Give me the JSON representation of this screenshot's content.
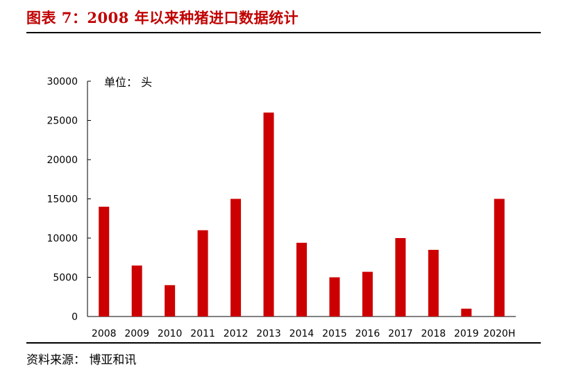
{
  "header": {
    "title": "图表 7：2008 年以来种猪进口数据统计"
  },
  "footer": {
    "source": "资料来源： 博亚和讯"
  },
  "colors": {
    "bar": "#cc0000",
    "title": "#c00000"
  },
  "chart_data": {
    "type": "bar",
    "title": "",
    "unit_label": "单位：  头",
    "categories": [
      "2008",
      "2009",
      "2010",
      "2011",
      "2012",
      "2013",
      "2014",
      "2015",
      "2016",
      "2017",
      "2018",
      "2019",
      "2020H"
    ],
    "values": [
      14000,
      6500,
      4000,
      11000,
      15000,
      26000,
      9400,
      5000,
      5700,
      10000,
      8500,
      1000,
      15000
    ],
    "ylim": [
      0,
      30000
    ],
    "yticks": [
      "0",
      "5000",
      "10000",
      "15000",
      "20000",
      "25000",
      "30000"
    ],
    "grid": false,
    "legend": "none"
  }
}
